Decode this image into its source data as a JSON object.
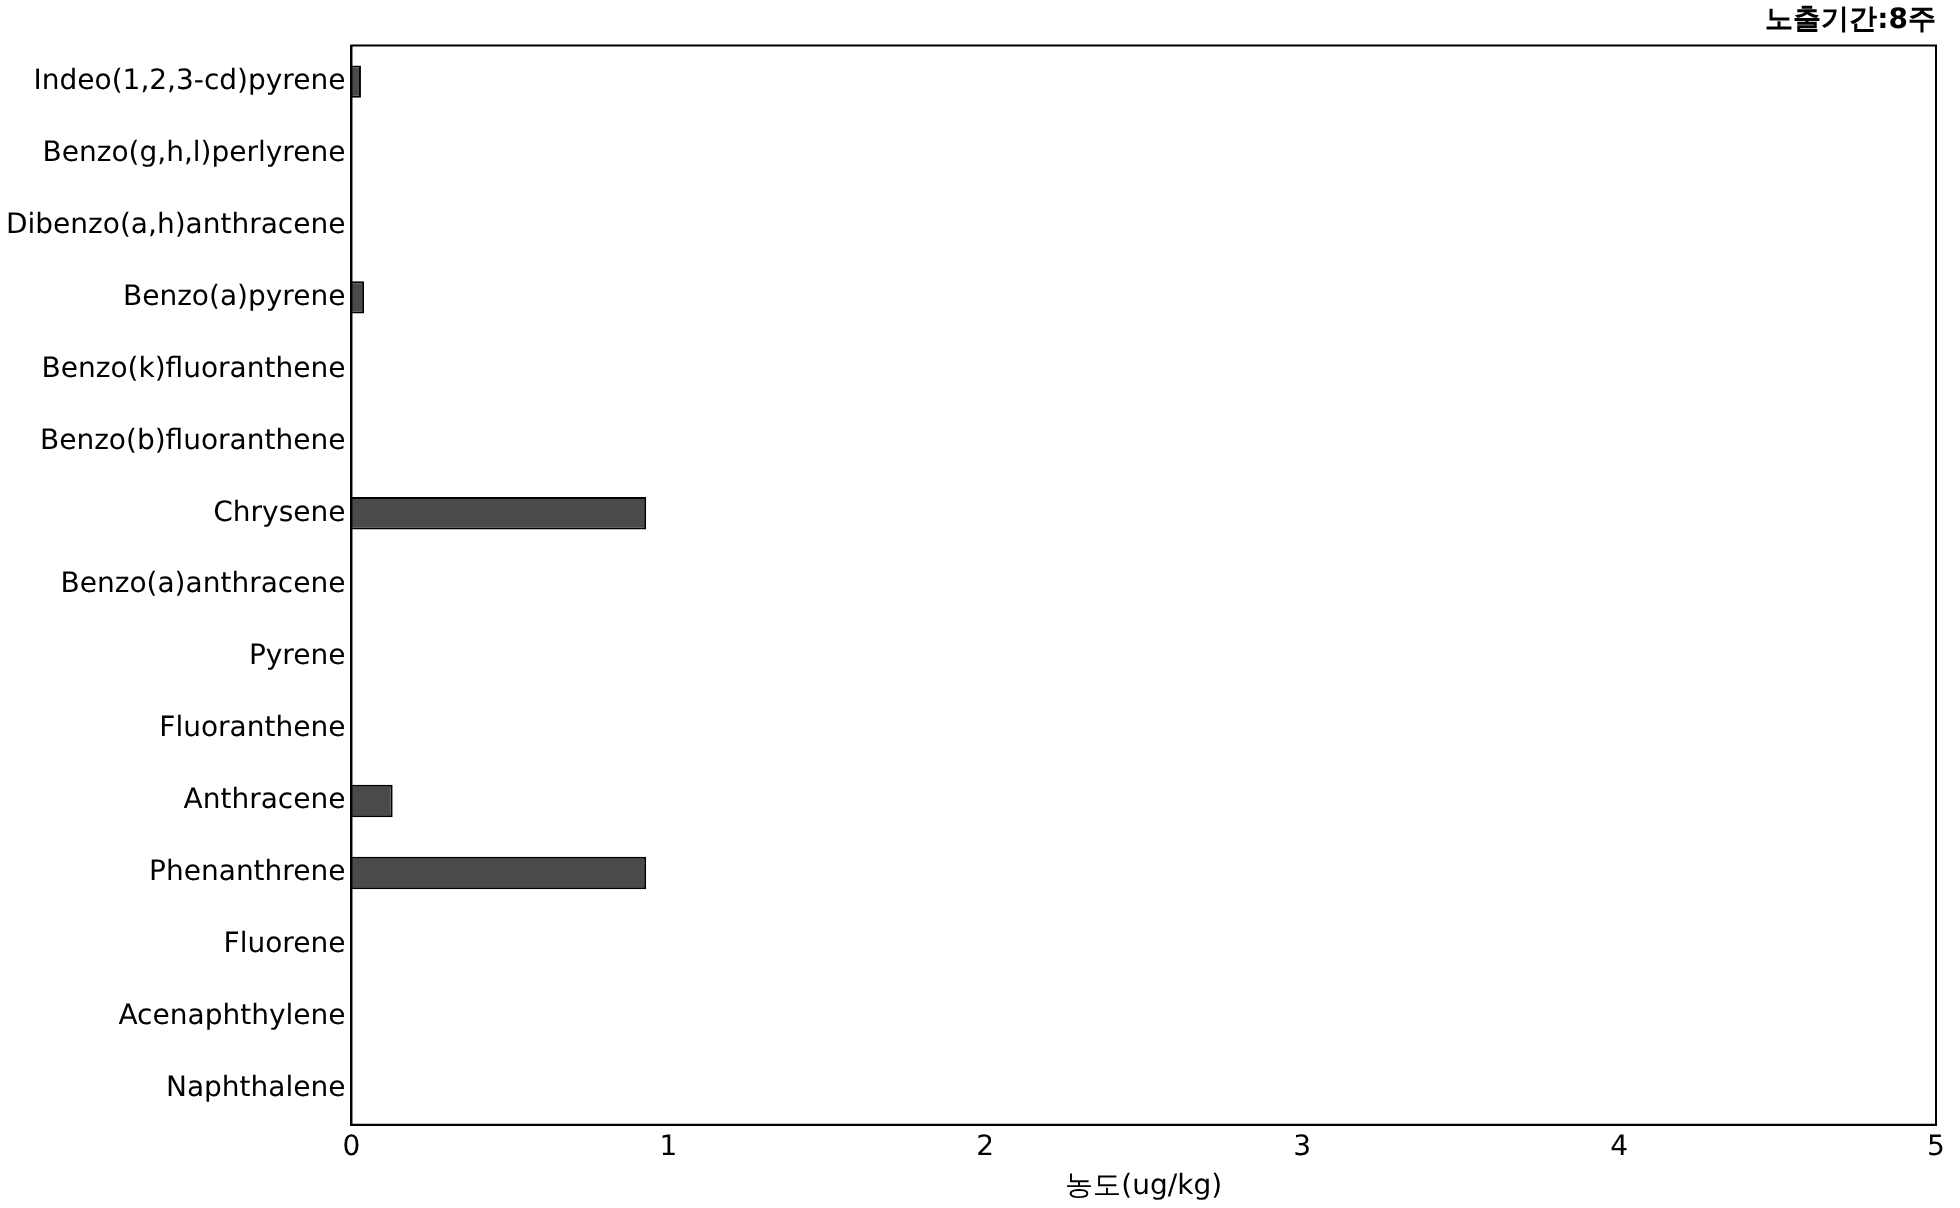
{
  "chart_data": {
    "type": "bar",
    "orientation": "horizontal",
    "title": "노출기간:8주",
    "xlabel": "농도(ug/kg)",
    "categories": [
      "Indeo(1,2,3-cd)pyrene",
      "Benzo(g,h,l)perlyrene",
      "Dibenzo(a,h)anthracene",
      "Benzo(a)pyrene",
      "Benzo(k)fluoranthene",
      "Benzo(b)fluoranthene",
      "Chrysene",
      "Benzo(a)anthracene",
      "Pyrene",
      "Fluoranthene",
      "Anthracene",
      "Phenanthrene",
      "Fluorene",
      "Acenaphthylene",
      "Naphthalene"
    ],
    "values": [
      0.03,
      0,
      0,
      0.04,
      0,
      0,
      0.93,
      0,
      0,
      0,
      0.13,
      0.93,
      0,
      0,
      0
    ],
    "color": "#4a4a4a",
    "xlim": [
      0,
      5
    ],
    "xticks": [
      0,
      1,
      2,
      3,
      4,
      5
    ],
    "grid": false,
    "legend": false
  }
}
